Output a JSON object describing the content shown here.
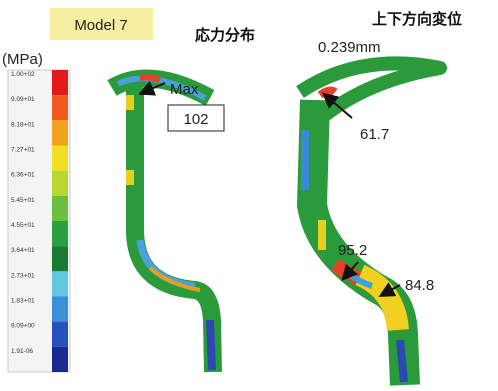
{
  "header": {
    "model": "Model 7",
    "stress_title": "応力分布",
    "disp_title": "上下方向変位",
    "disp_value": "0.239mm"
  },
  "colorbar": {
    "unit": "(MPa)",
    "labels": [
      "1.00+02",
      "9.09+01",
      "8.18+01",
      "7.27+01",
      "6.36+01",
      "5.45+01",
      "4.55+01",
      "3.64+01",
      "2.73+01",
      "1.83+01",
      "9.09+00",
      "1.91-06"
    ]
  },
  "annotations": {
    "max_label": "Max",
    "max_value": "102",
    "point_1": "61.7",
    "point_2": "95.2",
    "point_3": "84.8"
  }
}
